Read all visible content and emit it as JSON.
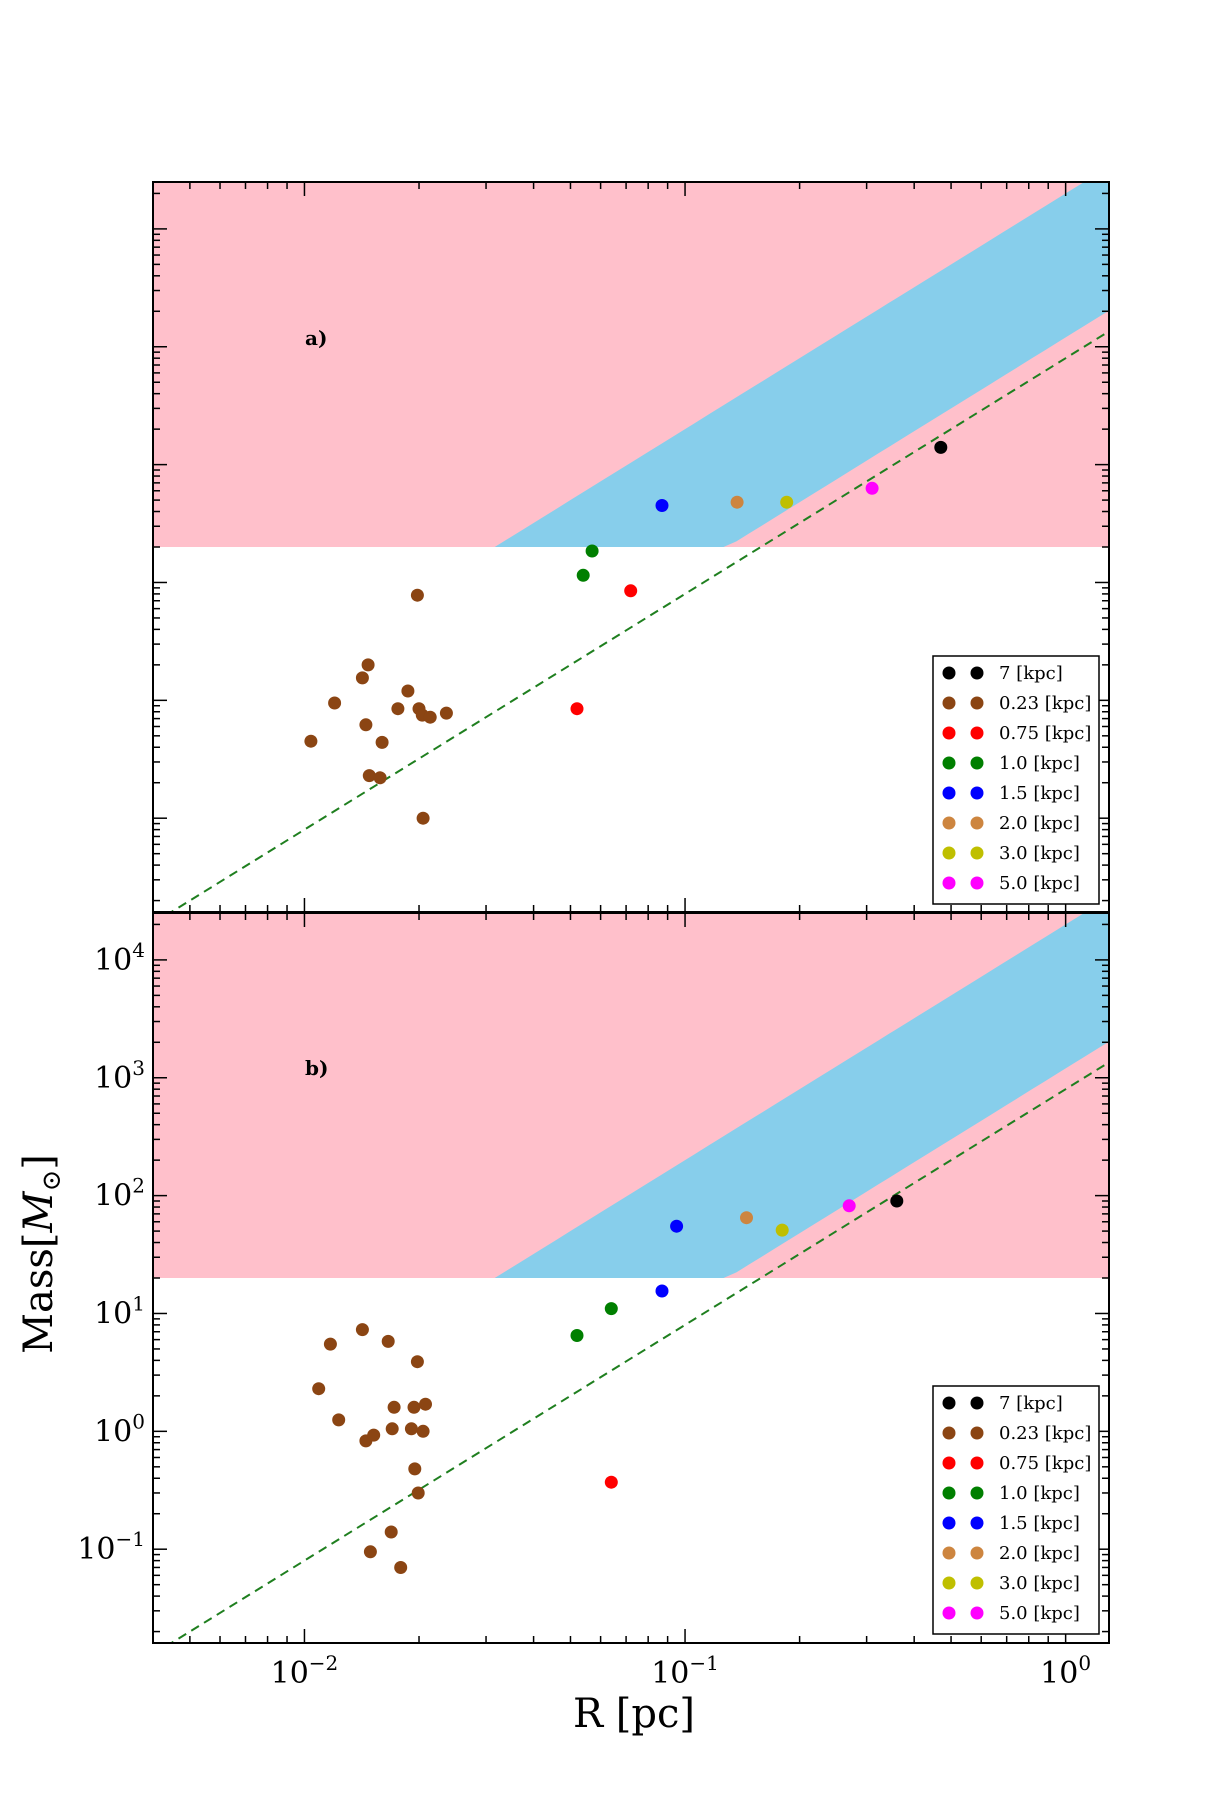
{
  "figure": {
    "xlabel": "R [pc]",
    "ylabel_prefix": "Mass[",
    "ylabel_symbol": "M",
    "ylabel_sub": "⊙",
    "ylabel_suffix": "]"
  },
  "colors": {
    "pink_region": "#ffc0cb",
    "blue_region": "#87ceeb",
    "dashed_line": "#1f7f1f",
    "frame": "#000000"
  },
  "chart_data": [
    {
      "type": "scatter",
      "panel_label": "a)",
      "xscale": "log",
      "yscale": "log",
      "xlim": [
        0.004,
        1.3
      ],
      "ylim": [
        0.016,
        25000
      ],
      "x_ticks": [
        {
          "base": "10",
          "exp": "−2",
          "value": 0.01
        },
        {
          "base": "10",
          "exp": "−1",
          "value": 0.1
        },
        {
          "base": "10",
          "exp": "0",
          "value": 1
        }
      ],
      "y_ticks": [
        {
          "base": "10",
          "exp": "−1",
          "value": 0.1
        },
        {
          "base": "10",
          "exp": "0",
          "value": 1
        },
        {
          "base": "10",
          "exp": "1",
          "value": 10
        },
        {
          "base": "10",
          "exp": "2",
          "value": 100
        },
        {
          "base": "10",
          "exp": "3",
          "value": 1000
        },
        {
          "base": "10",
          "exp": "4",
          "value": 10000
        }
      ],
      "show_x_tick_labels": false,
      "show_y_tick_labels": false,
      "regions": {
        "pink_floor": 20,
        "blue_knee_x": 0.058,
        "blue_upper_coeff": 20000,
        "blue_lower_coeff": 1200
      },
      "dashed_line": {
        "coeff": 800,
        "power": 2
      },
      "legend": [
        {
          "label": "7 [kpc]",
          "color": "#000000"
        },
        {
          "label": "0.23 [kpc]",
          "color": "#8b4513"
        },
        {
          "label": "0.75 [kpc]",
          "color": "#ff0000"
        },
        {
          "label": "1.0 [kpc]",
          "color": "#007f00"
        },
        {
          "label": "1.5 [kpc]",
          "color": "#0000ff"
        },
        {
          "label": "2.0 [kpc]",
          "color": "#cd853f"
        },
        {
          "label": "3.0 [kpc]",
          "color": "#bfbf00"
        },
        {
          "label": "5.0 [kpc]",
          "color": "#ff00ff"
        }
      ],
      "series": [
        {
          "name": "7 [kpc]",
          "color": "#000000",
          "points": [
            [
              0.47,
              140
            ]
          ]
        },
        {
          "name": "0.23 [kpc]",
          "color": "#8b4513",
          "points": [
            [
              0.0104,
              0.45
            ],
            [
              0.012,
              0.95
            ],
            [
              0.0142,
              1.55
            ],
            [
              0.0147,
              2.0
            ],
            [
              0.0145,
              0.62
            ],
            [
              0.0148,
              0.23
            ],
            [
              0.0158,
              0.22
            ],
            [
              0.016,
              0.44
            ],
            [
              0.0176,
              0.85
            ],
            [
              0.0187,
              1.2
            ],
            [
              0.02,
              0.85
            ],
            [
              0.0204,
              0.75
            ],
            [
              0.0214,
              0.72
            ],
            [
              0.0236,
              0.78
            ],
            [
              0.0198,
              7.8
            ],
            [
              0.0205,
              0.1
            ]
          ]
        },
        {
          "name": "0.75 [kpc]",
          "color": "#ff0000",
          "points": [
            [
              0.072,
              8.5
            ],
            [
              0.052,
              0.85
            ]
          ]
        },
        {
          "name": "1.0 [kpc]",
          "color": "#007f00",
          "points": [
            [
              0.057,
              18.5
            ],
            [
              0.054,
              11.5
            ]
          ]
        },
        {
          "name": "1.5 [kpc]",
          "color": "#0000ff",
          "points": [
            [
              0.087,
              45
            ]
          ]
        },
        {
          "name": "2.0 [kpc]",
          "color": "#cd853f",
          "points": [
            [
              0.137,
              48
            ]
          ]
        },
        {
          "name": "3.0 [kpc]",
          "color": "#bfbf00",
          "points": [
            [
              0.185,
              48
            ]
          ]
        },
        {
          "name": "5.0 [kpc]",
          "color": "#ff00ff",
          "points": [
            [
              0.31,
              63
            ]
          ]
        }
      ]
    },
    {
      "type": "scatter",
      "panel_label": "b)",
      "xscale": "log",
      "yscale": "log",
      "xlim": [
        0.004,
        1.3
      ],
      "ylim": [
        0.016,
        25000
      ],
      "x_ticks": [
        {
          "base": "10",
          "exp": "−2",
          "value": 0.01
        },
        {
          "base": "10",
          "exp": "−1",
          "value": 0.1
        },
        {
          "base": "10",
          "exp": "0",
          "value": 1
        }
      ],
      "y_ticks": [
        {
          "base": "10",
          "exp": "−1",
          "value": 0.1
        },
        {
          "base": "10",
          "exp": "0",
          "value": 1
        },
        {
          "base": "10",
          "exp": "1",
          "value": 10
        },
        {
          "base": "10",
          "exp": "2",
          "value": 100
        },
        {
          "base": "10",
          "exp": "3",
          "value": 1000
        },
        {
          "base": "10",
          "exp": "4",
          "value": 10000
        }
      ],
      "show_x_tick_labels": true,
      "show_y_tick_labels": true,
      "regions": {
        "pink_floor": 20,
        "blue_knee_x": 0.058,
        "blue_upper_coeff": 20000,
        "blue_lower_coeff": 1200
      },
      "dashed_line": {
        "coeff": 800,
        "power": 2
      },
      "legend": [
        {
          "label": "7 [kpc]",
          "color": "#000000"
        },
        {
          "label": "0.23 [kpc]",
          "color": "#8b4513"
        },
        {
          "label": "0.75 [kpc]",
          "color": "#ff0000"
        },
        {
          "label": "1.0 [kpc]",
          "color": "#007f00"
        },
        {
          "label": "1.5 [kpc]",
          "color": "#0000ff"
        },
        {
          "label": "2.0 [kpc]",
          "color": "#cd853f"
        },
        {
          "label": "3.0 [kpc]",
          "color": "#bfbf00"
        },
        {
          "label": "5.0 [kpc]",
          "color": "#ff00ff"
        }
      ],
      "series": [
        {
          "name": "7 [kpc]",
          "color": "#000000",
          "points": [
            [
              0.36,
              90
            ]
          ]
        },
        {
          "name": "0.23 [kpc]",
          "color": "#8b4513",
          "points": [
            [
              0.0109,
              2.3
            ],
            [
              0.0117,
              5.5
            ],
            [
              0.0123,
              1.25
            ],
            [
              0.0142,
              7.3
            ],
            [
              0.0145,
              0.83
            ],
            [
              0.0152,
              0.93
            ],
            [
              0.0149,
              0.095
            ],
            [
              0.0166,
              5.8
            ],
            [
              0.017,
              1.05
            ],
            [
              0.0172,
              1.6
            ],
            [
              0.0169,
              0.14
            ],
            [
              0.0179,
              0.07
            ],
            [
              0.0191,
              1.05
            ],
            [
              0.0194,
              1.6
            ],
            [
              0.0195,
              0.48
            ],
            [
              0.0198,
              3.9
            ],
            [
              0.0199,
              0.3
            ],
            [
              0.0205,
              1.0
            ],
            [
              0.0208,
              1.7
            ]
          ]
        },
        {
          "name": "0.75 [kpc]",
          "color": "#ff0000",
          "points": [
            [
              0.064,
              0.37
            ]
          ]
        },
        {
          "name": "1.0 [kpc]",
          "color": "#007f00",
          "points": [
            [
              0.052,
              6.5
            ],
            [
              0.064,
              11
            ]
          ]
        },
        {
          "name": "1.5 [kpc]",
          "color": "#0000ff",
          "points": [
            [
              0.087,
              15.5
            ],
            [
              0.095,
              55
            ]
          ]
        },
        {
          "name": "2.0 [kpc]",
          "color": "#cd853f",
          "points": [
            [
              0.145,
              65
            ]
          ]
        },
        {
          "name": "3.0 [kpc]",
          "color": "#bfbf00",
          "points": [
            [
              0.18,
              51
            ]
          ]
        },
        {
          "name": "5.0 [kpc]",
          "color": "#ff00ff",
          "points": [
            [
              0.27,
              82
            ]
          ]
        }
      ]
    }
  ]
}
